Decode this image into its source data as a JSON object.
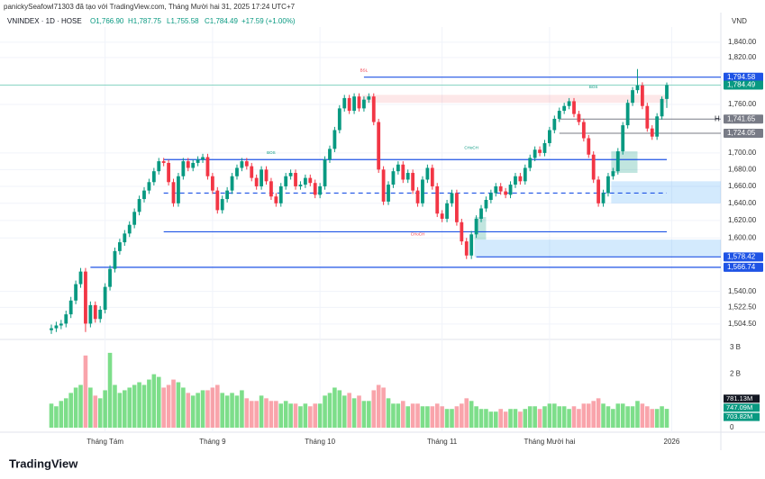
{
  "header": {
    "credit": "panickySeafowl71303 đã tạo với TradingView.com, Tháng Mười hai 31, 2025 17:24 UTC+7",
    "symbol": "VNINDEX · 1D · HOSE",
    "o": "O1,766.90",
    "h": "H1,787.75",
    "l": "L1,755.58",
    "c": "C1,784.49",
    "change": "+17.59 (+1.00%)",
    "currency": "VND"
  },
  "footer": {
    "logo": "TradingView"
  },
  "chart_data": {
    "type": "candlestick",
    "log_scale": true,
    "grid": true,
    "ylim": [
      1490,
      1860
    ],
    "yticks": [
      {
        "value": 1840,
        "label": "1,840.00"
      },
      {
        "value": 1820,
        "label": "1,820.00"
      },
      {
        "value": 1760,
        "label": "1,760.00"
      },
      {
        "value": 1700,
        "label": "1,700.00"
      },
      {
        "value": 1680,
        "label": "1,680.00"
      },
      {
        "value": 1660,
        "label": "1,660.00"
      },
      {
        "value": 1640,
        "label": "1,640.00"
      },
      {
        "value": 1620,
        "label": "1,620.00"
      },
      {
        "value": 1600,
        "label": "1,600.00"
      },
      {
        "value": 1540,
        "label": "1,540.00"
      },
      {
        "value": 1522.5,
        "label": "1,522.50"
      },
      {
        "value": 1504.5,
        "label": "1,504.50"
      }
    ],
    "xticks": [
      {
        "value": 11,
        "label": "Tháng Tám"
      },
      {
        "value": 33,
        "label": "Tháng 9"
      },
      {
        "value": 55,
        "label": "Tháng 10"
      },
      {
        "value": 80,
        "label": "Tháng 11"
      },
      {
        "value": 102,
        "label": "Tháng Mười hai"
      },
      {
        "value": 127,
        "label": "2026"
      }
    ],
    "up_color": "#089981",
    "down_color": "#f23645",
    "candles": [
      [
        1498,
        1504,
        1494,
        1500
      ],
      [
        1500,
        1507,
        1496,
        1503
      ],
      [
        1503,
        1509,
        1499,
        1505
      ],
      [
        1505,
        1519,
        1501,
        1515
      ],
      [
        1515,
        1534,
        1511,
        1530
      ],
      [
        1530,
        1552,
        1526,
        1548
      ],
      [
        1548,
        1566,
        1544,
        1562
      ],
      [
        1562,
        1566,
        1496,
        1505
      ],
      [
        1505,
        1529,
        1501,
        1525
      ],
      [
        1525,
        1529,
        1506,
        1510
      ],
      [
        1510,
        1524,
        1506,
        1520
      ],
      [
        1520,
        1549,
        1516,
        1545
      ],
      [
        1545,
        1569,
        1541,
        1565
      ],
      [
        1565,
        1589,
        1561,
        1585
      ],
      [
        1585,
        1599,
        1581,
        1595
      ],
      [
        1595,
        1609,
        1591,
        1605
      ],
      [
        1605,
        1619,
        1601,
        1615
      ],
      [
        1615,
        1634,
        1611,
        1630
      ],
      [
        1630,
        1649,
        1626,
        1645
      ],
      [
        1645,
        1659,
        1641,
        1655
      ],
      [
        1655,
        1669,
        1651,
        1665
      ],
      [
        1665,
        1682,
        1661,
        1678
      ],
      [
        1678,
        1694,
        1674,
        1690
      ],
      [
        1690,
        1694,
        1684,
        1688
      ],
      [
        1688,
        1692,
        1661,
        1665
      ],
      [
        1665,
        1669,
        1636,
        1640
      ],
      [
        1640,
        1676,
        1636,
        1672
      ],
      [
        1672,
        1694,
        1668,
        1690
      ],
      [
        1690,
        1694,
        1678,
        1682
      ],
      [
        1682,
        1692,
        1678,
        1688
      ],
      [
        1688,
        1696,
        1684,
        1692
      ],
      [
        1692,
        1699,
        1688,
        1695
      ],
      [
        1695,
        1699,
        1668,
        1672
      ],
      [
        1672,
        1676,
        1651,
        1655
      ],
      [
        1655,
        1659,
        1628,
        1632
      ],
      [
        1632,
        1649,
        1628,
        1645
      ],
      [
        1645,
        1659,
        1641,
        1655
      ],
      [
        1655,
        1676,
        1651,
        1672
      ],
      [
        1672,
        1686,
        1668,
        1682
      ],
      [
        1682,
        1694,
        1678,
        1690
      ],
      [
        1690,
        1694,
        1680,
        1684
      ],
      [
        1684,
        1688,
        1666,
        1670
      ],
      [
        1670,
        1674,
        1656,
        1660
      ],
      [
        1660,
        1684,
        1656,
        1680
      ],
      [
        1680,
        1684,
        1662,
        1666
      ],
      [
        1666,
        1670,
        1644,
        1648
      ],
      [
        1648,
        1652,
        1636,
        1640
      ],
      [
        1640,
        1664,
        1636,
        1660
      ],
      [
        1660,
        1676,
        1656,
        1672
      ],
      [
        1672,
        1680,
        1668,
        1676
      ],
      [
        1676,
        1680,
        1656,
        1660
      ],
      [
        1660,
        1666,
        1656,
        1662
      ],
      [
        1662,
        1674,
        1658,
        1670
      ],
      [
        1670,
        1674,
        1660,
        1664
      ],
      [
        1664,
        1668,
        1646,
        1650
      ],
      [
        1650,
        1664,
        1646,
        1660
      ],
      [
        1660,
        1696,
        1656,
        1692
      ],
      [
        1692,
        1709,
        1688,
        1705
      ],
      [
        1705,
        1732,
        1701,
        1728
      ],
      [
        1728,
        1759,
        1724,
        1755
      ],
      [
        1755,
        1772,
        1751,
        1768
      ],
      [
        1768,
        1772,
        1748,
        1752
      ],
      [
        1752,
        1774,
        1748,
        1770
      ],
      [
        1770,
        1774,
        1751,
        1755
      ],
      [
        1755,
        1770,
        1751,
        1766
      ],
      [
        1766,
        1774,
        1762,
        1770
      ],
      [
        1770,
        1774,
        1734,
        1738
      ],
      [
        1738,
        1742,
        1676,
        1680
      ],
      [
        1680,
        1684,
        1638,
        1642
      ],
      [
        1642,
        1666,
        1638,
        1662
      ],
      [
        1662,
        1682,
        1658,
        1678
      ],
      [
        1678,
        1690,
        1674,
        1686
      ],
      [
        1686,
        1690,
        1664,
        1668
      ],
      [
        1668,
        1680,
        1664,
        1676
      ],
      [
        1676,
        1680,
        1651,
        1655
      ],
      [
        1655,
        1659,
        1636,
        1640
      ],
      [
        1640,
        1672,
        1636,
        1668
      ],
      [
        1668,
        1686,
        1664,
        1682
      ],
      [
        1682,
        1686,
        1656,
        1660
      ],
      [
        1660,
        1664,
        1624,
        1628
      ],
      [
        1628,
        1632,
        1618,
        1622
      ],
      [
        1622,
        1644,
        1618,
        1640
      ],
      [
        1640,
        1656,
        1636,
        1652
      ],
      [
        1652,
        1656,
        1614,
        1618
      ],
      [
        1618,
        1622,
        1592,
        1596
      ],
      [
        1596,
        1600,
        1576,
        1580
      ],
      [
        1580,
        1608,
        1576,
        1604
      ],
      [
        1604,
        1626,
        1600,
        1622
      ],
      [
        1622,
        1638,
        1618,
        1634
      ],
      [
        1634,
        1648,
        1630,
        1644
      ],
      [
        1644,
        1656,
        1640,
        1652
      ],
      [
        1652,
        1664,
        1648,
        1660
      ],
      [
        1660,
        1664,
        1650,
        1654
      ],
      [
        1654,
        1658,
        1646,
        1650
      ],
      [
        1650,
        1666,
        1646,
        1662
      ],
      [
        1662,
        1676,
        1658,
        1672
      ],
      [
        1672,
        1676,
        1662,
        1666
      ],
      [
        1666,
        1686,
        1662,
        1682
      ],
      [
        1682,
        1698,
        1678,
        1694
      ],
      [
        1694,
        1708,
        1690,
        1704
      ],
      [
        1704,
        1708,
        1696,
        1700
      ],
      [
        1700,
        1716,
        1696,
        1712
      ],
      [
        1712,
        1732,
        1708,
        1728
      ],
      [
        1728,
        1746,
        1724,
        1742
      ],
      [
        1742,
        1756,
        1738,
        1752
      ],
      [
        1752,
        1762,
        1748,
        1758
      ],
      [
        1758,
        1768,
        1754,
        1764
      ],
      [
        1764,
        1768,
        1744,
        1748
      ],
      [
        1748,
        1752,
        1734,
        1738
      ],
      [
        1738,
        1742,
        1714,
        1718
      ],
      [
        1718,
        1722,
        1694,
        1698
      ],
      [
        1698,
        1702,
        1664,
        1668
      ],
      [
        1668,
        1672,
        1636,
        1640
      ],
      [
        1640,
        1656,
        1636,
        1652
      ],
      [
        1652,
        1676,
        1648,
        1672
      ],
      [
        1672,
        1682,
        1668,
        1678
      ],
      [
        1678,
        1706,
        1674,
        1702
      ],
      [
        1702,
        1738,
        1698,
        1734
      ],
      [
        1734,
        1766,
        1730,
        1762
      ],
      [
        1762,
        1782,
        1758,
        1778
      ],
      [
        1778,
        1805,
        1774,
        1784
      ],
      [
        1784,
        1788,
        1754,
        1758
      ],
      [
        1758,
        1762,
        1726,
        1730
      ],
      [
        1730,
        1734,
        1716,
        1720
      ],
      [
        1720,
        1749,
        1716,
        1745
      ],
      [
        1745,
        1770,
        1741,
        1766.9
      ],
      [
        1766.9,
        1787.75,
        1755.58,
        1784.49
      ]
    ],
    "volumes": [
      0.9,
      0.8,
      1.0,
      1.1,
      1.3,
      1.5,
      1.6,
      2.7,
      1.5,
      1.2,
      1.1,
      1.4,
      2.8,
      1.6,
      1.3,
      1.4,
      1.5,
      1.6,
      1.7,
      1.6,
      1.8,
      2.0,
      1.9,
      1.5,
      1.6,
      1.8,
      1.7,
      1.5,
      1.3,
      1.2,
      1.3,
      1.4,
      1.4,
      1.5,
      1.6,
      1.3,
      1.2,
      1.3,
      1.2,
      1.4,
      1.1,
      1.0,
      1.0,
      1.2,
      1.1,
      1.0,
      1.0,
      0.9,
      1.0,
      0.9,
      0.9,
      0.8,
      0.9,
      0.8,
      0.9,
      0.9,
      1.2,
      1.3,
      1.5,
      1.4,
      1.2,
      1.3,
      1.1,
      1.2,
      1.0,
      1.0,
      1.4,
      1.6,
      1.5,
      1.1,
      0.9,
      0.9,
      1.0,
      0.8,
      0.9,
      0.9,
      0.8,
      0.8,
      0.8,
      0.9,
      0.8,
      0.7,
      0.7,
      0.8,
      0.9,
      1.1,
      1.0,
      0.8,
      0.7,
      0.7,
      0.6,
      0.6,
      0.7,
      0.6,
      0.7,
      0.7,
      0.6,
      0.7,
      0.8,
      0.8,
      0.7,
      0.8,
      0.9,
      0.9,
      0.8,
      0.8,
      0.7,
      0.8,
      0.7,
      0.9,
      0.9,
      1.0,
      1.1,
      0.9,
      0.8,
      0.7,
      0.9,
      0.9,
      0.8,
      0.8,
      1.0,
      0.9,
      0.8,
      0.7,
      0.7,
      0.8,
      0.70382
    ],
    "vlim": [
      0,
      3.2
    ],
    "vticks": [
      {
        "value": 3,
        "label": "3 B"
      },
      {
        "value": 2,
        "label": "2 B"
      },
      0
    ],
    "levels": [
      {
        "value": 1794.58,
        "color": "#1e53e5"
      },
      {
        "value": 1692,
        "color": "#1e53e5"
      },
      {
        "value": 1652,
        "color": "#1e53e5",
        "dashed": true
      },
      {
        "value": 1607,
        "color": "#1e53e5"
      },
      {
        "value": 1578.42,
        "color": "#1e53e5"
      },
      {
        "value": 1566.74,
        "color": "#1e53e5"
      },
      {
        "value": 1741.65,
        "color": "#787b86"
      },
      {
        "value": 1724.05,
        "color": "#787b86"
      },
      {
        "value": 1784.49,
        "color": "#89d4c4"
      }
    ],
    "zones": [
      {
        "from": 1762,
        "to": 1772,
        "color": "rgba(242,54,69,0.12)"
      },
      {
        "from": 1640,
        "to": 1666,
        "color": "rgba(33,150,243,0.2)"
      },
      {
        "from": 1578.42,
        "to": 1598,
        "color": "rgba(33,150,243,0.2)"
      },
      {
        "from": 1676,
        "to": 1702,
        "color": "rgba(8,153,129,0.25)"
      },
      {
        "from": 1598,
        "to": 1624,
        "color": "rgba(8,153,129,0.25)"
      }
    ],
    "annotations": [
      "BSL",
      "BOS",
      "CHoCH",
      "CHoCH",
      "BOS"
    ],
    "price_tags": [
      {
        "value": 1794.58,
        "label": "1,794.58",
        "color": "#1e53e5"
      },
      {
        "value": 1784.49,
        "label": "1,784.49",
        "color": "#089981"
      },
      {
        "value": 1741.65,
        "label": "1,741.65",
        "color": "#787b86",
        "marker": "H"
      },
      {
        "value": 1724.05,
        "label": "1,724.05",
        "color": "#787b86"
      },
      {
        "value": 1578.42,
        "label": "1,578.42",
        "color": "#1e53e5"
      },
      {
        "value": 1566.74,
        "label": "1,566.74",
        "color": "#1e53e5"
      }
    ],
    "volume_tags": [
      {
        "value": 0.78113,
        "label": "781.13M",
        "color": "#131722"
      },
      {
        "value": 0.74709,
        "label": "747.09M",
        "color": "#089981"
      },
      {
        "value": 0.70382,
        "label": "703.82M",
        "color": "#089981"
      }
    ]
  }
}
